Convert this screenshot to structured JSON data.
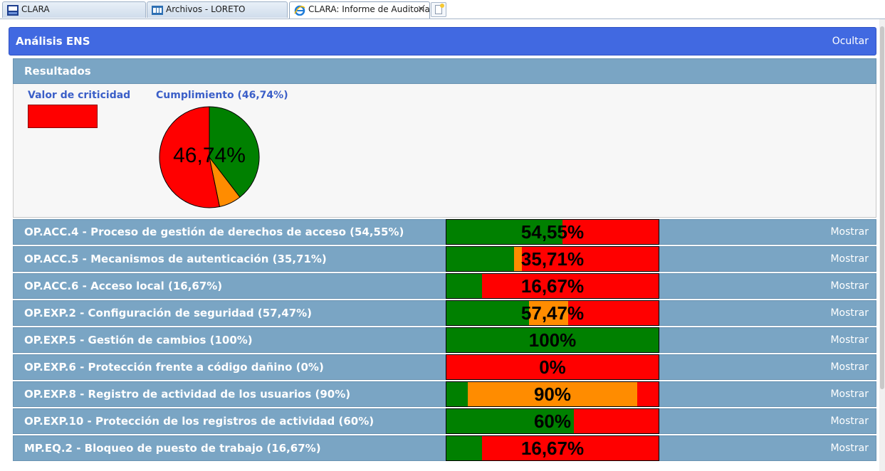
{
  "browser": {
    "tabs": [
      {
        "label": "CLARA",
        "icon": "clara-logo-icon",
        "active": false
      },
      {
        "label": "Archivos - LORETO",
        "icon": "folder-app-icon",
        "active": false
      },
      {
        "label": "CLARA: Informe de Auditoría",
        "icon": "ie-browser-icon",
        "active": true
      }
    ],
    "close_label": "✕"
  },
  "ens": {
    "title": "Análisis ENS",
    "hide_label": "Ocultar"
  },
  "results": {
    "title": "Resultados",
    "criticality_label": "Valor de criticidad",
    "criticality_color": "#ff0000",
    "compliance_label": "Cumplimiento (46,74%)",
    "compliance_percent_label": "46,74%"
  },
  "chart_data": {
    "type": "pie",
    "title": "Cumplimiento (46,74%)",
    "slices": [
      {
        "color": "#008000",
        "value": 39.5
      },
      {
        "color": "#ff8c00",
        "value": 7.2
      },
      {
        "color": "#ff0000",
        "value": 53.3
      }
    ]
  },
  "controls": [
    {
      "label": "OP.ACC.4 - Proceso de gestión de derechos de acceso (54,55%)",
      "percent_label": "54,55%",
      "segments": {
        "green": 54.55,
        "orange": 0,
        "red": 45.45
      },
      "action": "Mostrar"
    },
    {
      "label": "OP.ACC.5 - Mecanismos de autenticación (35,71%)",
      "percent_label": "35,71%",
      "segments": {
        "green": 32.0,
        "orange": 3.71,
        "red": 64.29
      },
      "action": "Mostrar"
    },
    {
      "label": "OP.ACC.6 - Acceso local (16,67%)",
      "percent_label": "16,67%",
      "segments": {
        "green": 16.67,
        "orange": 0,
        "red": 83.33
      },
      "action": "Mostrar"
    },
    {
      "label": "OP.EXP.2 - Configuración de seguridad (57,47%)",
      "percent_label": "57,47%",
      "segments": {
        "green": 39.0,
        "orange": 18.47,
        "red": 42.53
      },
      "action": "Mostrar"
    },
    {
      "label": "OP.EXP.5 - Gestión de cambios (100%)",
      "percent_label": "100%",
      "segments": {
        "green": 100,
        "orange": 0,
        "red": 0
      },
      "action": "Mostrar"
    },
    {
      "label": "OP.EXP.6 - Protección frente a código dañino (0%)",
      "percent_label": "0%",
      "segments": {
        "green": 0,
        "orange": 0,
        "red": 100
      },
      "action": "Mostrar"
    },
    {
      "label": "OP.EXP.8 - Registro de actividad de los usuarios (90%)",
      "percent_label": "90%",
      "segments": {
        "green": 10,
        "orange": 80,
        "red": 10
      },
      "action": "Mostrar"
    },
    {
      "label": "OP.EXP.10 - Protección de los registros de actividad (60%)",
      "percent_label": "60%",
      "segments": {
        "green": 60,
        "orange": 0,
        "red": 40
      },
      "action": "Mostrar"
    },
    {
      "label": "MP.EQ.2 - Bloqueo de puesto de trabajo (16,67%)",
      "percent_label": "16,67%",
      "segments": {
        "green": 16.67,
        "orange": 0,
        "red": 83.33
      },
      "action": "Mostrar"
    }
  ]
}
